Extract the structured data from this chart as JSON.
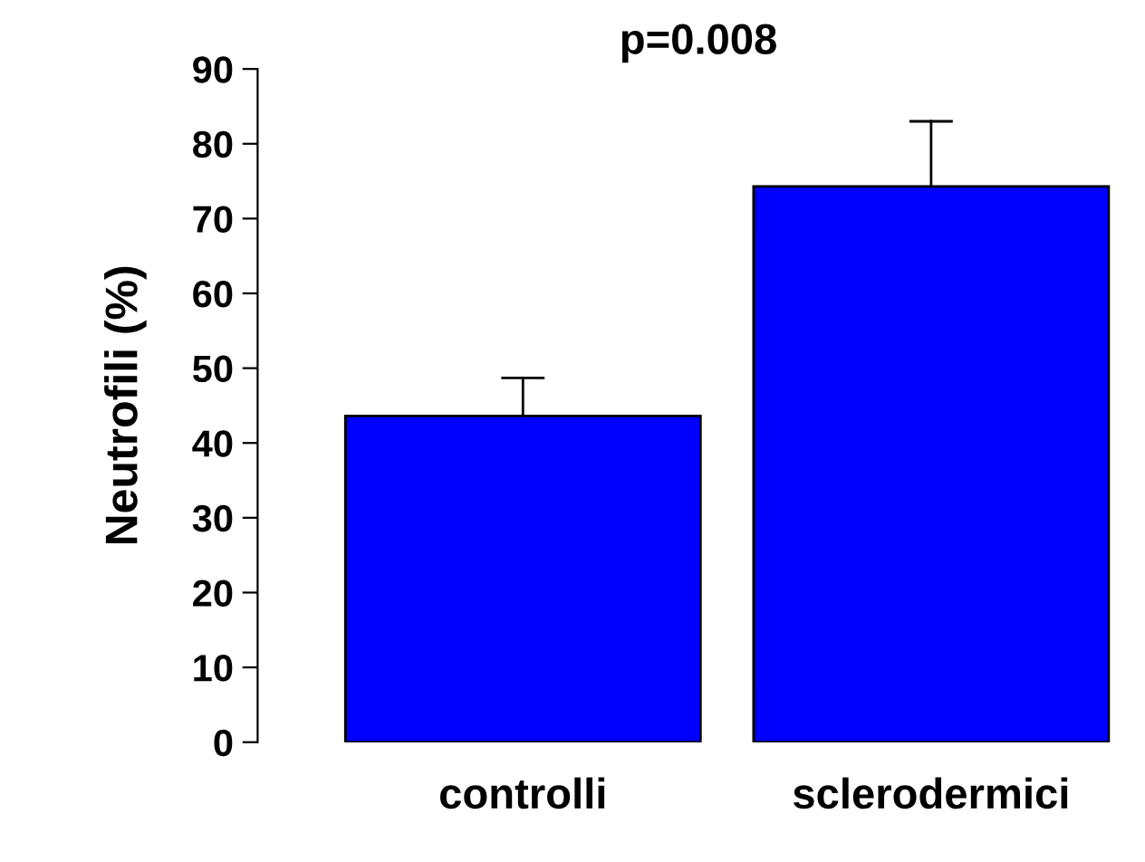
{
  "chart_data": {
    "type": "bar",
    "title": "p=0.008",
    "ylabel": "Neutrofili (%)",
    "categories": [
      "controlli",
      "sclerodermici"
    ],
    "values": [
      43.6,
      74.3
    ],
    "errors": [
      [
        43.6,
        48.7
      ],
      [
        74.3,
        83.0
      ]
    ],
    "color": "#0000ff",
    "ylim": [
      0,
      90
    ],
    "yticks": [
      0,
      10,
      20,
      30,
      40,
      50,
      60,
      70,
      80,
      90
    ],
    "grid": false,
    "legend": false
  }
}
